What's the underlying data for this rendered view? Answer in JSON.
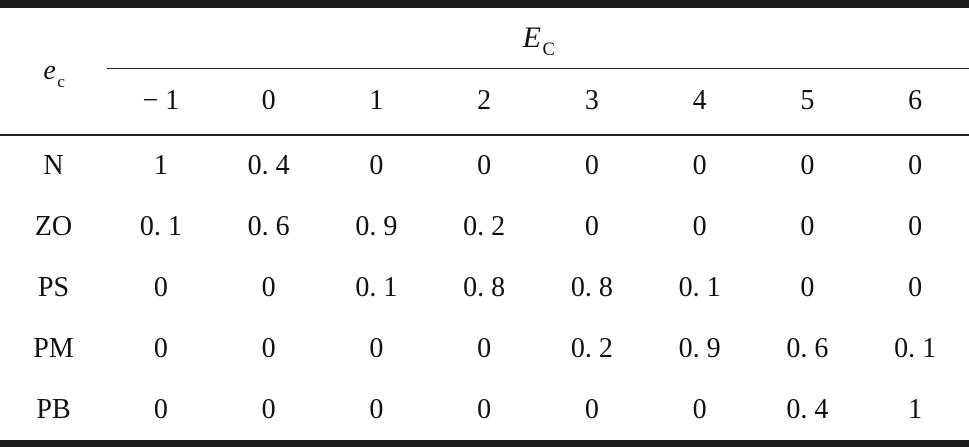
{
  "table": {
    "row_axis": {
      "main": "e",
      "sub": "c"
    },
    "col_axis": {
      "main": "E",
      "sub": "C"
    },
    "col_headers": [
      "− 1",
      "0",
      "1",
      "2",
      "3",
      "4",
      "5",
      "6"
    ],
    "rows": [
      {
        "label": "N",
        "values": [
          "1",
          "0. 4",
          "0",
          "0",
          "0",
          "0",
          "0",
          "0"
        ]
      },
      {
        "label": "ZO",
        "values": [
          "0. 1",
          "0. 6",
          "0. 9",
          "0. 2",
          "0",
          "0",
          "0",
          "0"
        ]
      },
      {
        "label": "PS",
        "values": [
          "0",
          "0",
          "0. 1",
          "0. 8",
          "0. 8",
          "0. 1",
          "0",
          "0"
        ]
      },
      {
        "label": "PM",
        "values": [
          "0",
          "0",
          "0",
          "0",
          "0. 2",
          "0. 9",
          "0. 6",
          "0. 1"
        ]
      },
      {
        "label": "PB",
        "values": [
          "0",
          "0",
          "0",
          "0",
          "0",
          "0",
          "0. 4",
          "1"
        ]
      }
    ],
    "colors": {
      "rule": "#1d1d1d",
      "text": "#111111",
      "background": "#ffffff"
    }
  },
  "chart_data": {
    "type": "table",
    "row_variable": "e_c",
    "column_variable": "E_C",
    "columns": [
      -1,
      0,
      1,
      2,
      3,
      4,
      5,
      6
    ],
    "row_labels": [
      "N",
      "ZO",
      "PS",
      "PM",
      "PB"
    ],
    "values": [
      [
        1,
        0.4,
        0,
        0,
        0,
        0,
        0,
        0
      ],
      [
        0.1,
        0.6,
        0.9,
        0.2,
        0,
        0,
        0,
        0
      ],
      [
        0,
        0,
        0.1,
        0.8,
        0.8,
        0.1,
        0,
        0
      ],
      [
        0,
        0,
        0,
        0,
        0.2,
        0.9,
        0.6,
        0.1
      ],
      [
        0,
        0,
        0,
        0,
        0,
        0,
        0.4,
        1
      ]
    ]
  }
}
